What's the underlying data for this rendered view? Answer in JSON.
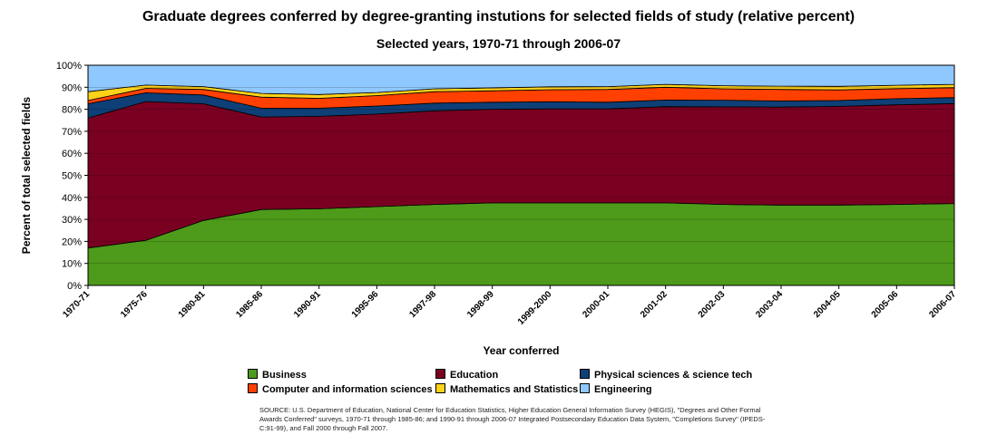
{
  "chart_data": {
    "type": "area",
    "stacked": true,
    "normalized": "percent",
    "title": "Graduate degrees conferred by degree-granting instutions for selected fields of study (relative percent)",
    "subtitle": "Selected years, 1970-71 through 2006-07",
    "xlabel": "Year conferred",
    "ylabel": "Percent of total selected fields",
    "ylim": [
      0,
      100
    ],
    "y_ticks": [
      "0%",
      "10%",
      "20%",
      "30%",
      "40%",
      "50%",
      "60%",
      "70%",
      "80%",
      "90%",
      "100%"
    ],
    "grid": "horizontal",
    "legend_position": "bottom",
    "categories": [
      "1970-71",
      "1975-76",
      "1980-81",
      "1985-86",
      "1990-91",
      "1995-96",
      "1997-98",
      "1998-99",
      "1999-2000",
      "2000-01",
      "2001-02",
      "2002-03",
      "2003-04",
      "2004-05",
      "2005-06",
      "2006-07"
    ],
    "series": [
      {
        "name": "Business",
        "color": "#4e9a1a",
        "values": [
          17,
          20.5,
          29.5,
          34.5,
          34.8,
          35.8,
          36.8,
          37.5,
          37.5,
          37.5,
          37.5,
          36.8,
          36.5,
          36.5,
          36.8,
          37.2
        ]
      },
      {
        "name": "Education",
        "color": "#7a0021",
        "values": [
          59,
          63,
          53,
          42,
          42,
          42,
          42.5,
          42.5,
          42.7,
          42.7,
          43.7,
          44.3,
          44.5,
          44.8,
          45.2,
          45.4
        ]
      },
      {
        "name": "Physical sciences & science tech",
        "color": "#0e3f77",
        "values": [
          6.5,
          4,
          4,
          4,
          3.7,
          3.7,
          3.5,
          3.2,
          3.2,
          3,
          3,
          3,
          2.8,
          2.7,
          2.8,
          2.7
        ]
      },
      {
        "name": "Computer and information sciences",
        "color": "#ff4000",
        "values": [
          1.5,
          2,
          2.5,
          5,
          4.5,
          4.7,
          5.2,
          5.2,
          5.5,
          5.8,
          5.8,
          5.2,
          5.2,
          4.8,
          4.6,
          4.5
        ]
      },
      {
        "name": "Mathematics and Statistics",
        "color": "#ffd21a",
        "values": [
          4,
          1.5,
          1.3,
          1.7,
          1.7,
          1.4,
          1.3,
          1.3,
          1.3,
          1.3,
          1.3,
          1.4,
          1.5,
          1.6,
          1.5,
          1.5
        ]
      },
      {
        "name": "Engineering",
        "color": "#8ec8ff",
        "values": [
          12,
          9,
          9.7,
          12.8,
          13.3,
          12.4,
          10.7,
          10.3,
          9.8,
          9.7,
          8.7,
          9.3,
          9.5,
          9.6,
          9.1,
          8.7
        ]
      }
    ]
  },
  "source_note": "SOURCE: U.S. Department of Education, National Center for Education Statistics, Higher Education General Information Survey (HEGIS), \"Degrees and Other Formal Awards Conferred\" surveys, 1970-71 through 1985-86; and 1990-91 through 2006-07 Integrated Postsecondary Education Data System, \"Completions Survey\" (IPEDS-C:91-99), and Fall 2000 through Fall 2007."
}
